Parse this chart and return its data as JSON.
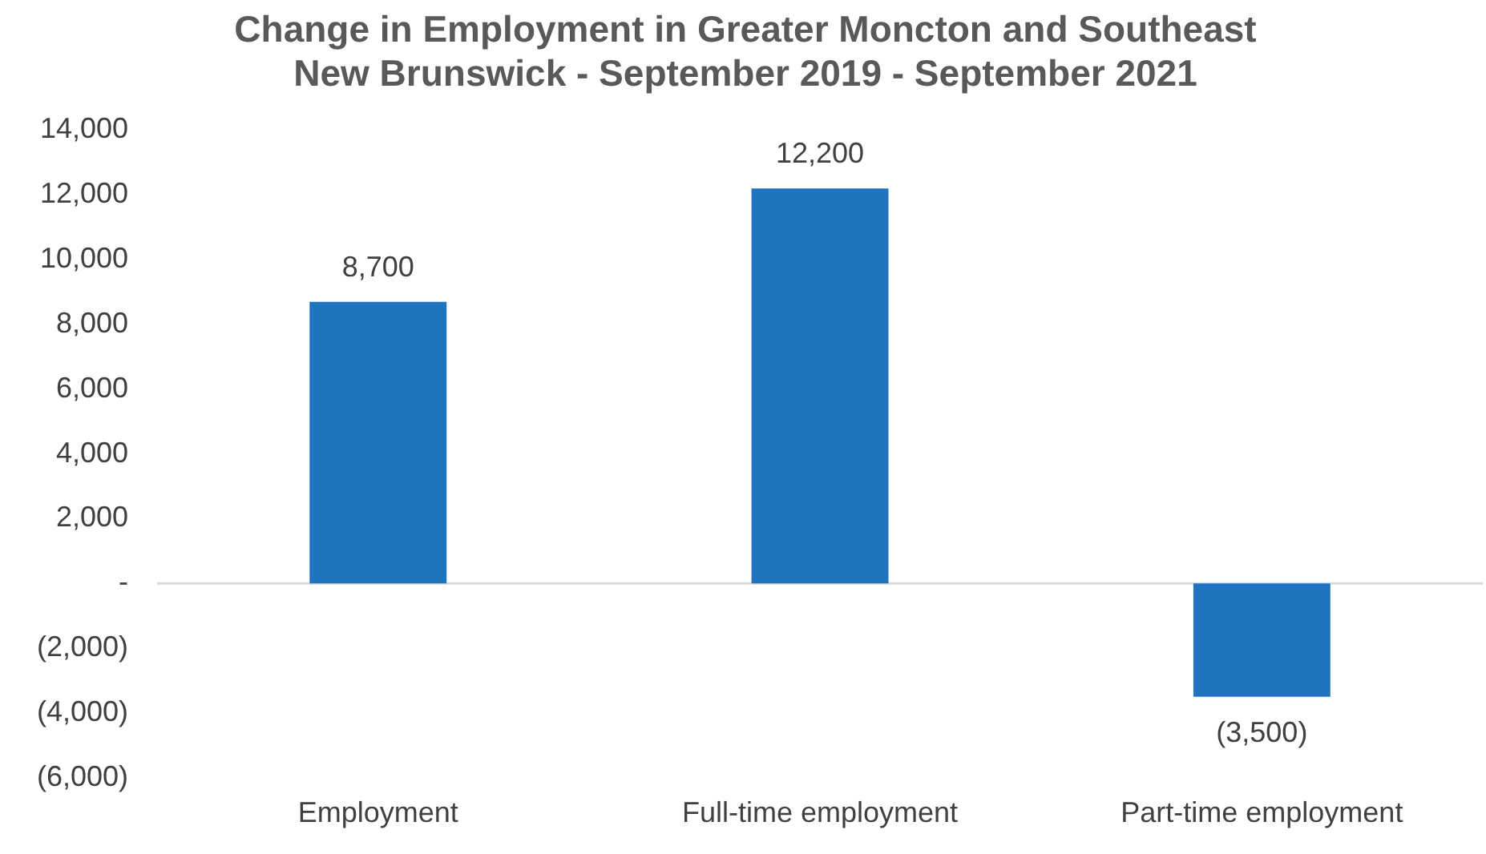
{
  "chart_data": {
    "type": "bar",
    "title": "Change in Employment in Greater Moncton and Southeast\nNew Brunswick - September 2019 - September 2021",
    "categories": [
      "Employment",
      "Full-time employment",
      "Part-time employment"
    ],
    "values": [
      8700,
      12200,
      -3500
    ],
    "color": "#1f73bf",
    "value_labels": [
      "8,700",
      "12,200",
      "(3,500)"
    ],
    "ylim": [
      -6000,
      14000
    ],
    "yticks": [
      {
        "value": -6000,
        "label": "(6,000)"
      },
      {
        "value": -4000,
        "label": "(4,000)"
      },
      {
        "value": -2000,
        "label": "(2,000)"
      },
      {
        "value": 0,
        "label": "-"
      },
      {
        "value": 2000,
        "label": "2,000"
      },
      {
        "value": 4000,
        "label": "4,000"
      },
      {
        "value": 6000,
        "label": "6,000"
      },
      {
        "value": 8000,
        "label": "8,000"
      },
      {
        "value": 10000,
        "label": "10,000"
      },
      {
        "value": 12000,
        "label": "12,000"
      },
      {
        "value": 14000,
        "label": "14,000"
      }
    ],
    "ref_lines": [
      {
        "axis": "y",
        "value": 0,
        "color": "#d9d9d9"
      }
    ],
    "grid": false,
    "legend": false
  }
}
